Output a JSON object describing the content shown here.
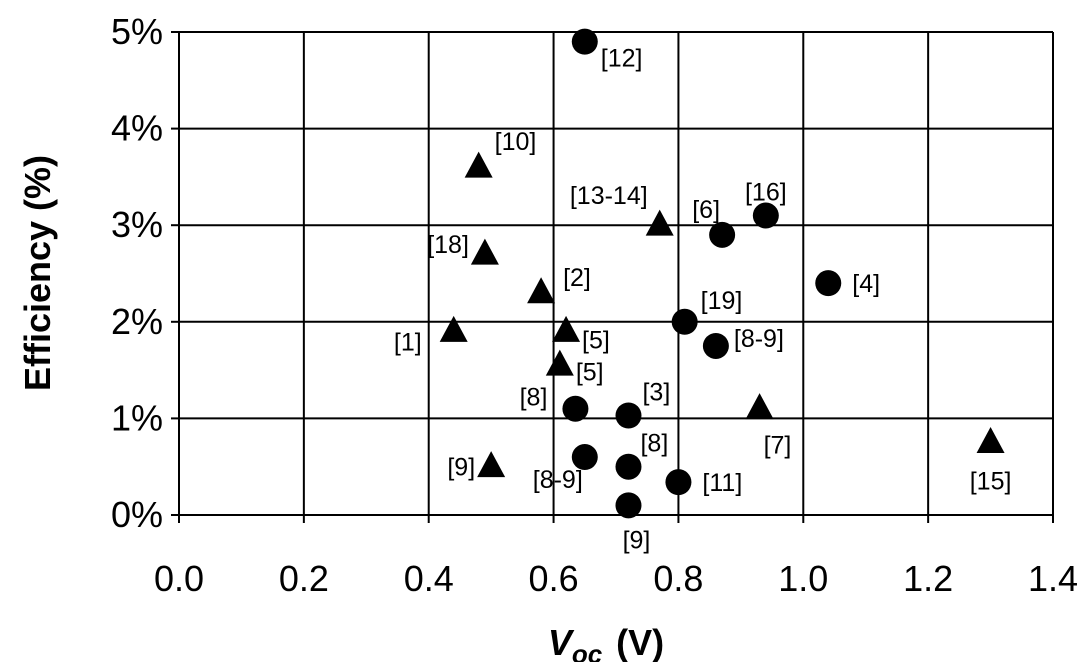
{
  "chart_data": {
    "type": "scatter",
    "title": "",
    "xlabel": "V",
    "xlabel_sub": "oc",
    "xlabel_unit": "(V)",
    "ylabel": "Efficiency (%)",
    "xlim": [
      0.0,
      1.4
    ],
    "ylim": [
      0,
      5
    ],
    "x_ticks": [
      "0.0",
      "0.2",
      "0.4",
      "0.6",
      "0.8",
      "1.0",
      "1.2",
      "1.4"
    ],
    "y_ticks": [
      "0%",
      "1%",
      "2%",
      "3%",
      "4%",
      "5%"
    ],
    "grid": true,
    "legend": "none",
    "series": [
      {
        "marker": "circle",
        "points": [
          {
            "x": 0.65,
            "y": 4.9,
            "label": "[12]"
          },
          {
            "x": 0.94,
            "y": 3.1,
            "label": "[16]"
          },
          {
            "x": 0.87,
            "y": 2.9,
            "label": "[6]"
          },
          {
            "x": 1.04,
            "y": 2.4,
            "label": "[4]"
          },
          {
            "x": 0.81,
            "y": 2.0,
            "label": "[19]"
          },
          {
            "x": 0.86,
            "y": 1.75,
            "label": "[8-9]"
          },
          {
            "x": 0.635,
            "y": 1.1,
            "label": "[8]"
          },
          {
            "x": 0.72,
            "y": 1.03,
            "label": "[3]"
          },
          {
            "x": 0.72,
            "y": 0.5,
            "label": "[8]"
          },
          {
            "x": 0.65,
            "y": 0.6,
            "label": "[8-9]"
          },
          {
            "x": 0.8,
            "y": 0.34,
            "label": "[11]"
          },
          {
            "x": 0.72,
            "y": 0.1,
            "label": "[9]"
          }
        ]
      },
      {
        "marker": "triangle",
        "points": [
          {
            "x": 0.48,
            "y": 3.6,
            "label": "[10]"
          },
          {
            "x": 0.77,
            "y": 3.0,
            "label": "[13-14]"
          },
          {
            "x": 0.49,
            "y": 2.7,
            "label": "[18]"
          },
          {
            "x": 0.58,
            "y": 2.3,
            "label": "[2]"
          },
          {
            "x": 0.44,
            "y": 1.9,
            "label": "[1]"
          },
          {
            "x": 0.62,
            "y": 1.9,
            "label": "[5]"
          },
          {
            "x": 0.61,
            "y": 1.55,
            "label": "[5]"
          },
          {
            "x": 0.93,
            "y": 1.1,
            "label": "[7]"
          },
          {
            "x": 0.5,
            "y": 0.5,
            "label": "[9]"
          },
          {
            "x": 1.3,
            "y": 0.75,
            "label": "[15]"
          }
        ]
      }
    ]
  }
}
